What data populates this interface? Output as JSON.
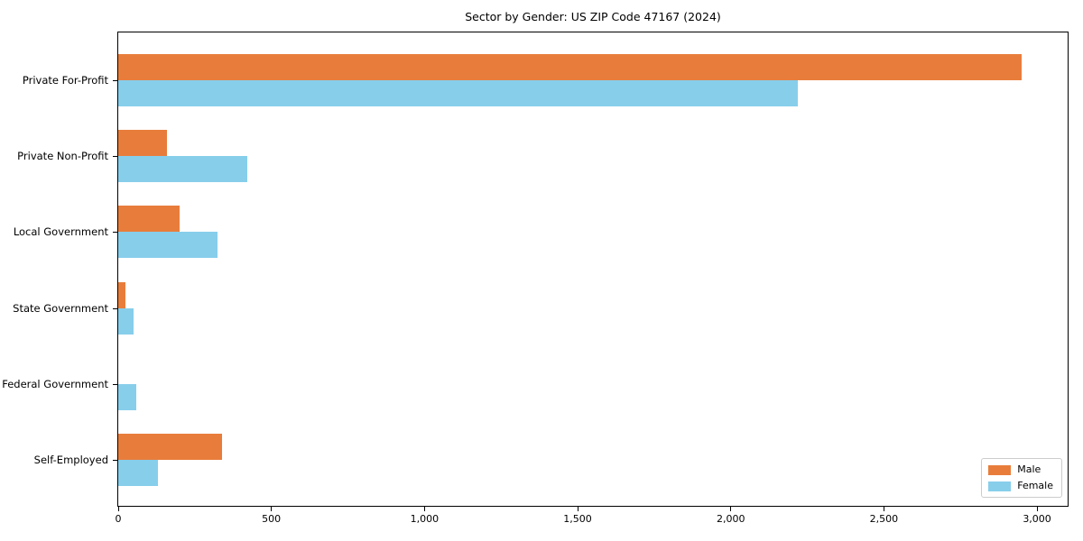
{
  "figure": {
    "title": "Sector by Gender: US ZIP Code 47167 (2024)"
  },
  "chart_data": {
    "type": "bar",
    "orientation": "horizontal",
    "title": "Sector by Gender: US ZIP Code 47167 (2024)",
    "categories": [
      "Private For-Profit",
      "Private Non-Profit",
      "Local Government",
      "State Government",
      "Federal Government",
      "Self-Employed"
    ],
    "series": [
      {
        "name": "Male",
        "color": "#e87d3b",
        "values": [
          2950,
          160,
          200,
          25,
          0,
          340
        ]
      },
      {
        "name": "Female",
        "color": "#87ceeb",
        "values": [
          2220,
          420,
          325,
          50,
          60,
          130
        ]
      }
    ],
    "xlabel": "",
    "ylabel": "",
    "xlim": [
      0,
      3100
    ],
    "xticks": [
      0,
      500,
      1000,
      1500,
      2000,
      2500,
      3000
    ],
    "xtick_labels": [
      "0",
      "500",
      "1,000",
      "1,500",
      "2,000",
      "2,500",
      "3,000"
    ],
    "grid": false,
    "legend": {
      "position": "lower right",
      "entries": [
        "Male",
        "Female"
      ]
    }
  }
}
